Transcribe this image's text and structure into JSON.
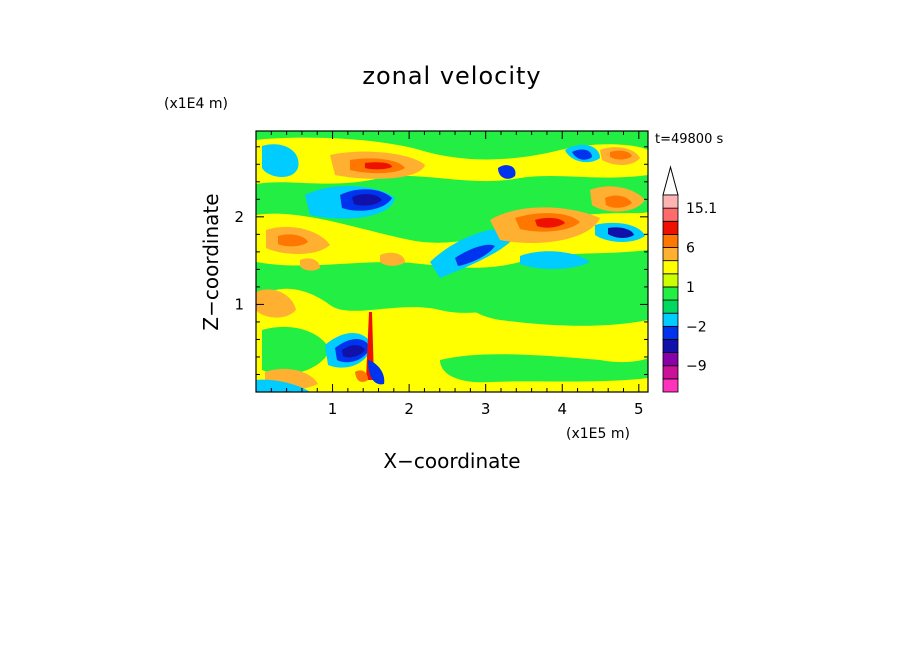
{
  "chart_data": {
    "type": "heatmap",
    "title": "zonal velocity",
    "xlabel": "X−coordinate",
    "ylabel": "Z−coordinate",
    "x_unit": "(x1E5 m)",
    "y_unit": "(x1E4 m)",
    "time_label": "t=49800 s",
    "xlim": [
      0,
      5.12
    ],
    "ylim": [
      0,
      2.98
    ],
    "x_ticks": [
      "1",
      "2",
      "3",
      "4",
      "5"
    ],
    "y_ticks": [
      "1",
      "2"
    ],
    "grid": false,
    "colorbar": {
      "labels": [
        "15.1",
        "6",
        "1",
        "−2",
        "−9"
      ],
      "levels": [
        -15,
        -12,
        -9,
        -6,
        -4,
        -2,
        -1,
        0,
        1,
        2,
        4,
        6,
        9,
        12,
        15.1
      ],
      "colors": [
        "#ff33bb",
        "#cc1199",
        "#8800aa",
        "#1111aa",
        "#0033ee",
        "#00ccff",
        "#00d860",
        "#22ee44",
        "#ccff00",
        "#ffff00",
        "#ffb030",
        "#ff7700",
        "#ee1100",
        "#ff6a6a",
        "#ffb4b4"
      ]
    },
    "field_description": "zonal velocity field contours"
  },
  "colors": {
    "background_fill": "#22ee44",
    "yellow": "#ffff00",
    "light_yellow": "#eeff22",
    "orange": "#ffb030",
    "dark_orange": "#ff7700",
    "red": "#ee1100",
    "cyan": "#00ccff",
    "blue": "#0033ee",
    "navy": "#1111aa"
  }
}
